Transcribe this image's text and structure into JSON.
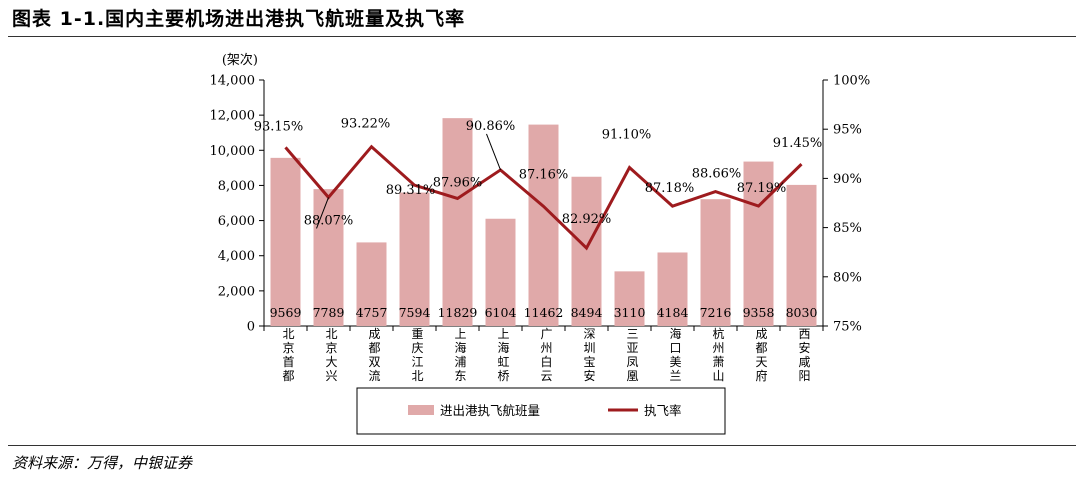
{
  "title": "图表 1-1.国内主要机场进出港执飞航班量及执飞率",
  "source": "资料来源：万得，中银证券",
  "colors": {
    "bar": "#e0a9a9",
    "line": "#9e1b1e",
    "axis": "#000000"
  },
  "chart_data": {
    "type": "bar",
    "categories": [
      "北京首都",
      "北京大兴",
      "成都双流",
      "重庆江北",
      "上海浦东",
      "上海虹桥",
      "广州白云",
      "深圳宝安",
      "三亚凤凰",
      "海口美兰",
      "杭州萧山",
      "成都天府",
      "西安咸阳"
    ],
    "series": [
      {
        "name": "进出港执飞航班量",
        "type": "bar",
        "axis": "left",
        "values": [
          9569,
          7789,
          4757,
          7594,
          11829,
          6104,
          11462,
          8494,
          3110,
          4184,
          7216,
          9358,
          8030
        ],
        "labels": [
          "9569",
          "7789",
          "4757",
          "7594",
          "11829",
          "6104",
          "11462",
          "8494",
          "3110",
          "4184",
          "7216",
          "9358",
          "8030"
        ]
      },
      {
        "name": "执飞率",
        "type": "line",
        "axis": "right",
        "values": [
          93.15,
          88.07,
          93.22,
          89.31,
          87.96,
          90.86,
          87.16,
          82.92,
          91.1,
          87.18,
          88.66,
          87.19,
          91.45
        ],
        "labels": [
          "93.15%",
          "88.07%",
          "93.22%",
          "89.31%",
          "87.96%",
          "90.86%",
          "87.16%",
          "82.92%",
          "91.10%",
          "87.18%",
          "88.66%",
          "87.19%",
          "91.45%"
        ]
      }
    ],
    "left_axis": {
      "unit": "(架次)",
      "ylim": [
        0,
        14000
      ],
      "ticks": [
        "0",
        "2,000",
        "4,000",
        "6,000",
        "8,000",
        "10,000",
        "12,000",
        "14,000"
      ]
    },
    "right_axis": {
      "ylim": [
        75,
        100
      ],
      "ticks": [
        "75%",
        "80%",
        "85%",
        "90%",
        "95%",
        "100%"
      ]
    },
    "legend_position": "bottom",
    "grid": false
  }
}
